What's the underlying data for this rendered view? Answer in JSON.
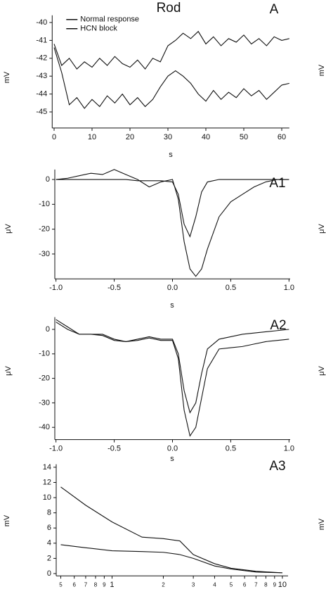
{
  "chart_data": [
    {
      "type": "line",
      "title": "Rod",
      "panel_label": "A",
      "x_label": "s",
      "y_label": "mV",
      "x": [
        0,
        2,
        4,
        6,
        8,
        10,
        12,
        14,
        16,
        18,
        20,
        22,
        24,
        26,
        28,
        30,
        32,
        34,
        36,
        38,
        40,
        42,
        44,
        46,
        48,
        50,
        52,
        54,
        56,
        58,
        60,
        62
      ],
      "series": [
        {
          "name": "Normal response",
          "color": "#111111",
          "values": [
            -41.2,
            -42.4,
            -42.0,
            -42.6,
            -42.2,
            -42.5,
            -42.0,
            -42.4,
            -41.9,
            -42.3,
            -42.5,
            -42.1,
            -42.6,
            -42.0,
            -42.2,
            -41.3,
            -41.0,
            -40.6,
            -40.9,
            -40.5,
            -41.2,
            -40.8,
            -41.3,
            -40.9,
            -41.1,
            -40.7,
            -41.2,
            -40.9,
            -41.3,
            -40.8,
            -41.0,
            -40.9
          ]
        },
        {
          "name": "HCN block",
          "color": "#111111",
          "values": [
            -41.4,
            -42.8,
            -44.6,
            -44.2,
            -44.8,
            -44.3,
            -44.7,
            -44.1,
            -44.5,
            -44.0,
            -44.6,
            -44.2,
            -44.7,
            -44.3,
            -43.6,
            -43.0,
            -42.7,
            -43.0,
            -43.4,
            -44.0,
            -44.4,
            -43.8,
            -44.3,
            -43.9,
            -44.2,
            -43.7,
            -44.1,
            -43.8,
            -44.3,
            -43.9,
            -43.5,
            -43.4
          ]
        }
      ],
      "xlim": [
        -0.5,
        62
      ],
      "xticks": [
        0,
        10,
        20,
        30,
        40,
        50,
        60
      ],
      "ylim": [
        -45.9,
        -39.6
      ],
      "yticks": [
        -40,
        -41,
        -42,
        -43,
        -44,
        -45
      ],
      "legend": "top-left"
    },
    {
      "type": "line",
      "panel_label": "A1",
      "x_label": "s",
      "y_label": "μV",
      "x": [
        -1.0,
        -0.9,
        -0.8,
        -0.7,
        -0.6,
        -0.5,
        -0.4,
        -0.3,
        -0.2,
        -0.1,
        0,
        0.05,
        0.1,
        0.15,
        0.2,
        0.25,
        0.3,
        0.4,
        0.5,
        0.6,
        0.7,
        0.8,
        0.9,
        1.0
      ],
      "series": [
        {
          "color": "#111111",
          "values": [
            0,
            0.5,
            1.5,
            2.5,
            2,
            4,
            2,
            0,
            -3,
            -1,
            0,
            -8,
            -25,
            -36,
            -39,
            -36,
            -28,
            -15,
            -9,
            -6,
            -3,
            -1,
            0,
            0
          ]
        },
        {
          "color": "#111111",
          "values": [
            0,
            0,
            0,
            0,
            0,
            0,
            0,
            -0.5,
            -0.5,
            -0.5,
            -1,
            -6,
            -18,
            -23,
            -15,
            -5,
            -1,
            0,
            0,
            0,
            0,
            0,
            0,
            0
          ]
        }
      ],
      "xlim": [
        -1.01,
        1.01
      ],
      "xticks": [
        {
          "value": -1,
          "label": "-1.0"
        },
        -0.5,
        {
          "value": 0,
          "label": "0.0"
        },
        0.5,
        {
          "value": 1,
          "label": "1.0"
        }
      ],
      "ylim": [
        -40,
        4
      ],
      "yticks": [
        0,
        -10,
        -20,
        -30
      ]
    },
    {
      "type": "line",
      "panel_label": "A2",
      "x_label": "s",
      "y_label": "μV",
      "x": [
        -1.0,
        -0.9,
        -0.8,
        -0.7,
        -0.6,
        -0.5,
        -0.4,
        -0.3,
        -0.2,
        -0.1,
        0,
        0.05,
        0.1,
        0.15,
        0.2,
        0.25,
        0.3,
        0.4,
        0.5,
        0.6,
        0.7,
        0.8,
        0.9,
        1.0
      ],
      "series": [
        {
          "color": "#111111",
          "values": [
            3,
            0,
            -2,
            -2,
            -2.5,
            -4.5,
            -5,
            -4,
            -3,
            -4,
            -4,
            -10,
            -25,
            -34,
            -30,
            -18,
            -8,
            -4,
            -3,
            -2,
            -1.5,
            -1,
            -0.5,
            0
          ]
        },
        {
          "color": "#111111",
          "values": [
            4,
            1,
            -2,
            -2,
            -2,
            -4,
            -5,
            -4.5,
            -3.5,
            -4.5,
            -4.5,
            -12,
            -33,
            -43.5,
            -40,
            -28,
            -16,
            -8,
            -7.5,
            -7,
            -6,
            -5,
            -4.5,
            -4
          ]
        }
      ],
      "xlim": [
        -1.01,
        1.01
      ],
      "xticks": [
        {
          "value": -1,
          "label": "-1.0"
        },
        -0.5,
        {
          "value": 0,
          "label": "0.0"
        },
        0.5,
        {
          "value": 1,
          "label": "1.0"
        }
      ],
      "ylim": [
        -45,
        5
      ],
      "yticks": [
        0,
        -10,
        -20,
        -30,
        -40
      ]
    },
    {
      "type": "line",
      "panel_label": "A3",
      "y_label": "mV",
      "xscale": "log",
      "x": [
        0.5,
        0.7,
        1,
        1.5,
        2,
        2.5,
        3,
        4,
        5,
        7,
        10
      ],
      "series": [
        {
          "color": "#111111",
          "values": [
            11.4,
            9,
            6.8,
            4.8,
            4.6,
            4.3,
            2.5,
            1.3,
            0.7,
            0.3,
            0.1
          ]
        },
        {
          "color": "#111111",
          "values": [
            3.8,
            3.4,
            3.0,
            2.9,
            2.8,
            2.5,
            2.0,
            1.0,
            0.6,
            0.2,
            0.1
          ]
        }
      ],
      "xlim": [
        0.47,
        10.8
      ],
      "xticks": [
        {
          "value": 0.5,
          "label": "5"
        },
        {
          "value": 0.6,
          "label": "6"
        },
        {
          "value": 0.7,
          "label": "7"
        },
        {
          "value": 0.8,
          "label": "8"
        },
        {
          "value": 0.9,
          "label": "9"
        },
        1,
        2,
        3,
        4,
        5,
        6,
        7,
        8,
        9,
        10
      ],
      "ylim": [
        -0.3,
        14.4
      ],
      "yticks": [
        0,
        2,
        4,
        6,
        8,
        10,
        12,
        14
      ]
    }
  ],
  "edge_labels": [
    "mV",
    "μV",
    "μV",
    "mV"
  ]
}
